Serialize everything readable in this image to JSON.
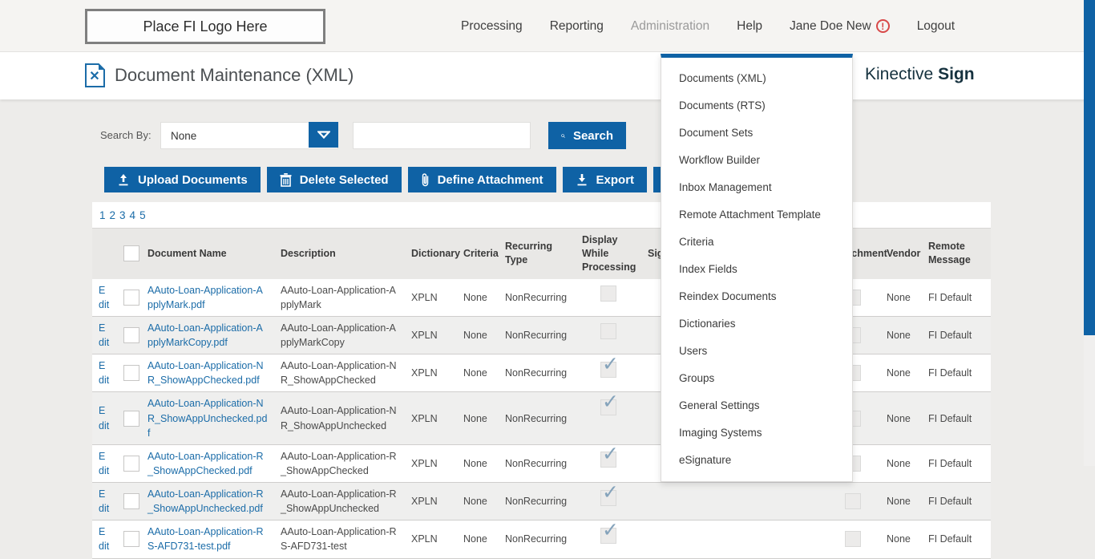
{
  "header": {
    "logo_text": "Place FI Logo Here",
    "nav": [
      {
        "label": "Processing",
        "active": false
      },
      {
        "label": "Reporting",
        "active": false
      },
      {
        "label": "Administration",
        "active": true
      },
      {
        "label": "Help",
        "active": false
      },
      {
        "label": "Jane Doe New",
        "active": false,
        "alert": true
      },
      {
        "label": "Logout",
        "active": false
      }
    ]
  },
  "page": {
    "title": "Document Maintenance (XML)",
    "brand_name": "Kinective",
    "brand_bold": "Sign"
  },
  "search": {
    "label": "Search By:",
    "selected_option": "None",
    "input_value": "",
    "button_label": "Search"
  },
  "toolbar": {
    "buttons": [
      {
        "icon": "upload-icon",
        "label": "Upload Documents"
      },
      {
        "icon": "trash-icon",
        "label": "Delete Selected"
      },
      {
        "icon": "paperclip-icon",
        "label": "Define Attachment"
      },
      {
        "icon": "download-icon",
        "label": "Export"
      },
      {
        "icon": "doc-download-icon",
        "label": ""
      }
    ]
  },
  "pagination": [
    "1",
    "2",
    "3",
    "4",
    "5"
  ],
  "admin_menu": {
    "items": [
      "Documents (XML)",
      "Documents (RTS)",
      "Document Sets",
      "Workflow Builder",
      "Inbox Management",
      "Remote Attachment Template",
      "Criteria",
      "Index Fields",
      "Reindex Documents",
      "Dictionaries",
      "Users",
      "Groups",
      "General Settings",
      "Imaging Systems",
      "eSignature"
    ]
  },
  "table": {
    "edit_label": "Edit",
    "columns": [
      {
        "key": "edit",
        "label": ""
      },
      {
        "key": "select",
        "label": "",
        "type": "checkbox"
      },
      {
        "key": "name",
        "label": "Document Name"
      },
      {
        "key": "desc",
        "label": "Description"
      },
      {
        "key": "dictionary",
        "label": "Dictionary"
      },
      {
        "key": "criteria",
        "label": "Criteria"
      },
      {
        "key": "recurring",
        "label": "Recurring Type"
      },
      {
        "key": "display",
        "label": "Display While Processing"
      },
      {
        "key": "sign",
        "label": "Sign Req"
      },
      {
        "key": "attachment",
        "label": "Attachment"
      },
      {
        "key": "vendor",
        "label": "Vendor"
      },
      {
        "key": "remote",
        "label": "Remote Message"
      }
    ],
    "rows": [
      {
        "name": "AAuto-Loan-Application-ApplyMark.pdf",
        "desc": "AAuto-Loan-Application-ApplyMark",
        "dictionary": "XPLN",
        "criteria": "None",
        "recurring": "NonRecurring",
        "display_checked": false,
        "vendor": "None",
        "remote": "FI Default"
      },
      {
        "name": "AAuto-Loan-Application-ApplyMarkCopy.pdf",
        "desc": "AAuto-Loan-Application-ApplyMarkCopy",
        "dictionary": "XPLN",
        "criteria": "None",
        "recurring": "NonRecurring",
        "display_checked": false,
        "vendor": "None",
        "remote": "FI Default"
      },
      {
        "name": "AAuto-Loan-Application-NR_ShowAppChecked.pdf",
        "desc": "AAuto-Loan-Application-NR_ShowAppChecked",
        "dictionary": "XPLN",
        "criteria": "None",
        "recurring": "NonRecurring",
        "display_checked": true,
        "vendor": "None",
        "remote": "FI Default"
      },
      {
        "name": "AAuto-Loan-Application-NR_ShowAppUnchecked.pdf",
        "desc": "AAuto-Loan-Application-NR_ShowAppUnchecked",
        "dictionary": "XPLN",
        "criteria": "None",
        "recurring": "NonRecurring",
        "display_checked": true,
        "vendor": "None",
        "remote": "FI Default"
      },
      {
        "name": "AAuto-Loan-Application-R_ShowAppChecked.pdf",
        "desc": "AAuto-Loan-Application-R_ShowAppChecked",
        "dictionary": "XPLN",
        "criteria": "None",
        "recurring": "NonRecurring",
        "display_checked": true,
        "vendor": "None",
        "remote": "FI Default"
      },
      {
        "name": "AAuto-Loan-Application-R_ShowAppUnchecked.pdf",
        "desc": "AAuto-Loan-Application-R_ShowAppUnchecked",
        "dictionary": "XPLN",
        "criteria": "None",
        "recurring": "NonRecurring",
        "display_checked": true,
        "vendor": "None",
        "remote": "FI Default"
      },
      {
        "name": "AAuto-Loan-Application-RS-AFD731-test.pdf",
        "desc": "AAuto-Loan-Application-RS-AFD731-test",
        "dictionary": "XPLN",
        "criteria": "None",
        "recurring": "NonRecurring",
        "display_checked": true,
        "vendor": "None",
        "remote": "FI Default"
      }
    ]
  },
  "colors": {
    "primary_blue": "#0f62a5",
    "link_blue": "#1b6ca8",
    "brand_dark": "#16323f",
    "alert_red": "#d84848",
    "check_mark": "#85a3bb"
  }
}
